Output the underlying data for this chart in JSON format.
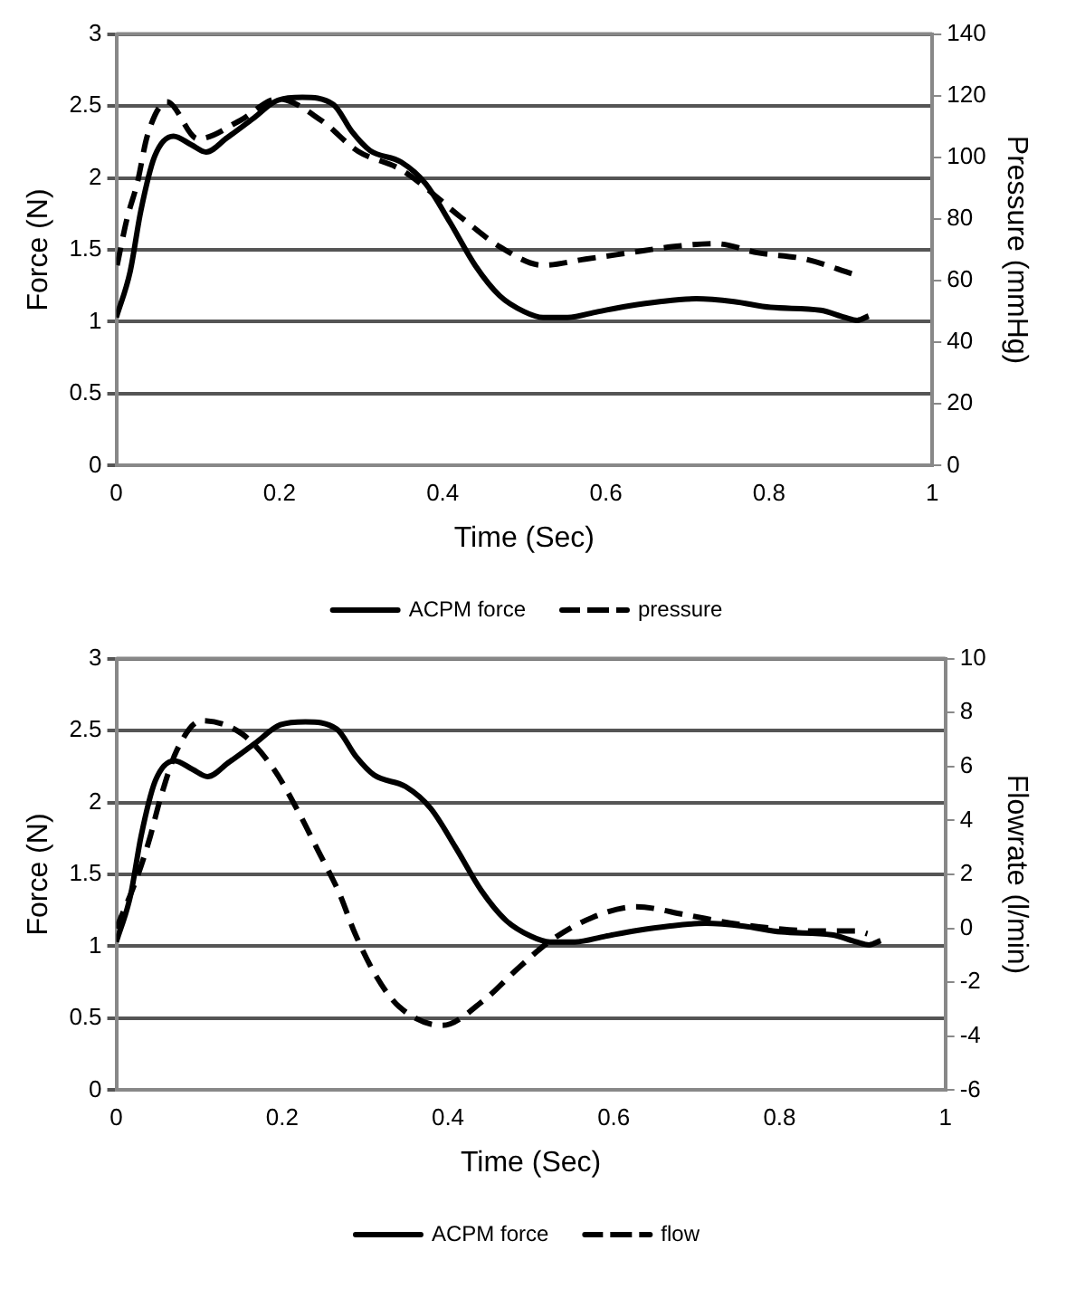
{
  "chart_data": [
    {
      "type": "line",
      "xlabel": "Time (Sec)",
      "ylabel": "Force (N)",
      "y2label": "Pressure (mmHg)",
      "xlim": [
        0,
        1
      ],
      "xticks": [
        0,
        0.2,
        0.4,
        0.6,
        0.8,
        1
      ],
      "ylim": [
        0,
        3
      ],
      "yticks": [
        0,
        0.5,
        1,
        1.5,
        2,
        2.5,
        3
      ],
      "y2lim": [
        0,
        140
      ],
      "y2ticks": [
        0,
        20,
        40,
        60,
        80,
        100,
        120,
        140
      ],
      "grid": "y",
      "legend": "bottom",
      "marker": "none",
      "series": [
        {
          "name": "ACPM force",
          "color": "#000000",
          "line_style": "solid",
          "x": [
            0,
            0.017,
            0.03,
            0.047,
            0.07,
            0.092,
            0.11,
            0.136,
            0.167,
            0.198,
            0.228,
            0.266,
            0.289,
            0.311,
            0.349,
            0.379,
            0.409,
            0.44,
            0.47,
            0.5,
            0.523,
            0.553,
            0.59,
            0.628,
            0.666,
            0.711,
            0.757,
            0.802,
            0.863,
            0.893,
            0.908,
            0.922
          ],
          "values": [
            1.03,
            1.35,
            1.77,
            2.15,
            2.29,
            2.23,
            2.18,
            2.28,
            2.41,
            2.54,
            2.56,
            2.51,
            2.32,
            2.19,
            2.11,
            1.96,
            1.69,
            1.39,
            1.18,
            1.07,
            1.03,
            1.03,
            1.07,
            1.11,
            1.14,
            1.16,
            1.14,
            1.1,
            1.08,
            1.03,
            1.01,
            1.04
          ]
        },
        {
          "name": "pressure",
          "color": "#000000",
          "line_style": "dashed",
          "axis": "y2",
          "x": [
            0.001,
            0.013,
            0.026,
            0.038,
            0.062,
            0.1,
            0.152,
            0.198,
            0.251,
            0.296,
            0.349,
            0.425,
            0.47,
            0.523,
            0.575,
            0.628,
            0.681,
            0.734,
            0.787,
            0.844,
            0.904
          ],
          "values": [
            65,
            80,
            92,
            107,
            118,
            106,
            112,
            119,
            112,
            102,
            96,
            80,
            71,
            65,
            67,
            69,
            71,
            72,
            69,
            67,
            62
          ]
        }
      ]
    },
    {
      "type": "line",
      "xlabel": "Time (Sec)",
      "ylabel": "Force (N)",
      "y2label": "Flowrate (l/min)",
      "xlim": [
        0,
        1
      ],
      "xticks": [
        0,
        0.2,
        0.4,
        0.6,
        0.8,
        1
      ],
      "ylim": [
        0,
        3
      ],
      "yticks": [
        0,
        0.5,
        1,
        1.5,
        2,
        2.5,
        3
      ],
      "y2lim": [
        -6,
        10
      ],
      "y2ticks": [
        -6,
        -4,
        -2,
        0,
        2,
        4,
        6,
        8,
        10
      ],
      "grid": "y",
      "legend": "bottom",
      "marker": "none",
      "series": [
        {
          "name": "ACPM force",
          "color": "#000000",
          "line_style": "solid",
          "x": [
            0,
            0.017,
            0.03,
            0.047,
            0.07,
            0.092,
            0.11,
            0.136,
            0.167,
            0.198,
            0.228,
            0.266,
            0.289,
            0.311,
            0.349,
            0.379,
            0.409,
            0.44,
            0.47,
            0.5,
            0.523,
            0.553,
            0.59,
            0.628,
            0.666,
            0.711,
            0.757,
            0.802,
            0.863,
            0.893,
            0.908,
            0.922
          ],
          "values": [
            1.03,
            1.35,
            1.77,
            2.15,
            2.29,
            2.23,
            2.18,
            2.28,
            2.41,
            2.54,
            2.56,
            2.51,
            2.32,
            2.19,
            2.11,
            1.96,
            1.69,
            1.39,
            1.18,
            1.07,
            1.03,
            1.03,
            1.07,
            1.11,
            1.14,
            1.16,
            1.14,
            1.1,
            1.08,
            1.03,
            1.01,
            1.04
          ]
        },
        {
          "name": "flow",
          "color": "#000000",
          "line_style": "dashed",
          "axis": "y2",
          "x": [
            0,
            0.024,
            0.039,
            0.054,
            0.073,
            0.103,
            0.152,
            0.19,
            0.22,
            0.243,
            0.269,
            0.288,
            0.314,
            0.341,
            0.393,
            0.442,
            0.484,
            0.522,
            0.574,
            0.627,
            0.687,
            0.74,
            0.793,
            0.846,
            0.895,
            0.906
          ],
          "values": [
            0,
            1.8,
            3.2,
            4.9,
            6.6,
            7.7,
            7.2,
            5.9,
            4.3,
            2.9,
            1.3,
            -0.2,
            -1.8,
            -2.9,
            -3.6,
            -2.7,
            -1.5,
            -0.5,
            0.4,
            0.8,
            0.5,
            0.2,
            0,
            -0.1,
            -0.1,
            -0.2
          ]
        }
      ]
    }
  ]
}
